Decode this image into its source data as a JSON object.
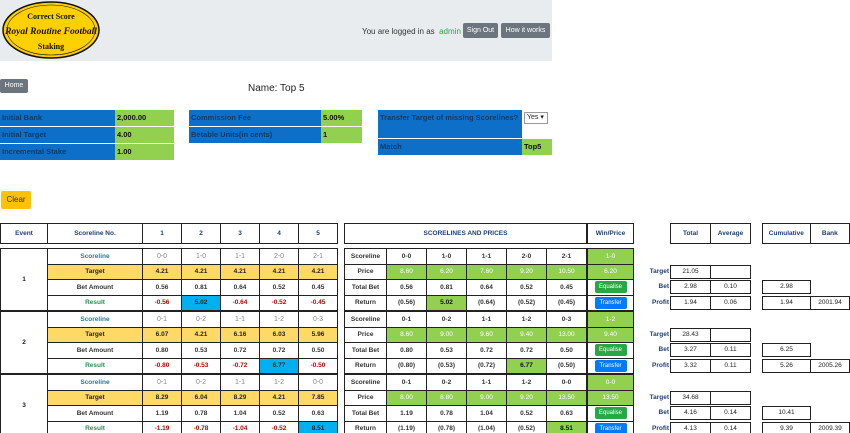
{
  "header": {
    "logo": {
      "line1": "Correct Score",
      "line2": "Royal Routine Football",
      "line3": "Staking"
    },
    "logged_in_text": "You are logged in as",
    "username": "admin",
    "sign_out": "Sign Out",
    "how_it_works": "How it works"
  },
  "home": "Home",
  "page_name": "Name: Top 5",
  "settings": {
    "initial_bank_label": "Initial Bank",
    "initial_bank": "2,000.00",
    "initial_target_label": "Initial Target",
    "initial_target": "4.00",
    "incremental_stake_label": "Incremental Stake",
    "incremental_stake": "1.00",
    "commission_label": "Commission Fee",
    "commission": "5.00%",
    "betable_label": "Betable Units(in cents)",
    "betable": "1",
    "transfer_label": "Transfer Target of missing Scorelines?",
    "transfer_value": "Yes",
    "match_label": "Match",
    "match": "Top5"
  },
  "clear": "Clear",
  "table_headers": {
    "event": "Event",
    "scoreline_no": "Scoreline No.",
    "nums": [
      "1",
      "2",
      "3",
      "4",
      "5"
    ],
    "scorelines_prices": "SCORELINES AND PRICES",
    "win_price": "Win/Price",
    "total": "Total",
    "average": "Average",
    "cumulative": "Cumulative",
    "bank": "Bank"
  },
  "row_labels": {
    "scoreline": "Scoreline",
    "target": "Target",
    "bet_amount": "Bet Amount",
    "result": "Result",
    "price": "Price",
    "total_bet": "Total Bet",
    "return": "Return",
    "equalise": "Equalise",
    "transfer": "Transfer",
    "side_target": "Target",
    "side_bet": "Bet",
    "side_profit": "Profit"
  },
  "events": [
    {
      "num": "1",
      "scorelines": [
        "0-0",
        "1-0",
        "1-1",
        "2-0",
        "2-1"
      ],
      "targets": [
        "4.21",
        "4.21",
        "4.21",
        "4.21",
        "4.21"
      ],
      "bets": [
        "0.56",
        "0.81",
        "0.64",
        "0.52",
        "0.45"
      ],
      "results": [
        "-0.56",
        "5.02",
        "-0.64",
        "-0.52",
        "-0.45"
      ],
      "prices": [
        "8.60",
        "6.20",
        "7.60",
        "9.20",
        "10.50"
      ],
      "returns": [
        "(0.56)",
        "5.02",
        "(0.64)",
        "(0.52)",
        "(0.45)"
      ],
      "win_score": "1-0",
      "win_price": "6.20",
      "side_target": "21.05",
      "side_bet": "2.98",
      "side_bet_avg": "0.10",
      "side_profit": "1.94",
      "side_profit_avg": "0.06",
      "cum_bet": "2.98",
      "cum_profit": "1.94",
      "bank": "2001.94"
    },
    {
      "num": "2",
      "scorelines": [
        "0-1",
        "0-2",
        "1-1",
        "1-2",
        "0-3"
      ],
      "targets": [
        "6.07",
        "4.21",
        "6.16",
        "6.03",
        "5.96"
      ],
      "bets": [
        "0.80",
        "0.53",
        "0.72",
        "0.72",
        "0.50"
      ],
      "results": [
        "-0.80",
        "-0.53",
        "-0.72",
        "6.77",
        "-0.50"
      ],
      "prices": [
        "8.60",
        "9.00",
        "9.60",
        "9.40",
        "13.00"
      ],
      "returns": [
        "(0.80)",
        "(0.53)",
        "(0.72)",
        "6.77",
        "(0.50)"
      ],
      "win_score": "1-2",
      "win_price": "9.40",
      "side_target": "28.43",
      "side_bet": "3.27",
      "side_bet_avg": "0.11",
      "side_profit": "3.32",
      "side_profit_avg": "0.11",
      "cum_bet": "6.25",
      "cum_profit": "5.26",
      "bank": "2005.26"
    },
    {
      "num": "3",
      "scorelines": [
        "0-1",
        "0-2",
        "1-1",
        "1-2",
        "0-0"
      ],
      "targets": [
        "8.29",
        "6.04",
        "8.29",
        "4.21",
        "7.85"
      ],
      "bets": [
        "1.19",
        "0.78",
        "1.04",
        "0.52",
        "0.63"
      ],
      "results": [
        "-1.19",
        "-0.78",
        "-1.04",
        "-0.52",
        "8.51"
      ],
      "prices": [
        "8.00",
        "8.80",
        "9.00",
        "9.20",
        "13.50"
      ],
      "returns": [
        "(1.19)",
        "(0.78)",
        "(1.04)",
        "(0.52)",
        "8.51"
      ],
      "win_score": "0-0",
      "win_price": "13.50",
      "side_target": "34.68",
      "side_bet": "4.16",
      "side_bet_avg": "0.14",
      "side_profit": "4.13",
      "side_profit_avg": "0.14",
      "cum_bet": "10.41",
      "cum_profit": "9.39",
      "bank": "2009.39"
    }
  ],
  "colors": {
    "blue_label": "#0d6fc8",
    "green_value": "#92d050",
    "yellow_target": "#ffd966",
    "cyan_win": "#00b0f0"
  }
}
